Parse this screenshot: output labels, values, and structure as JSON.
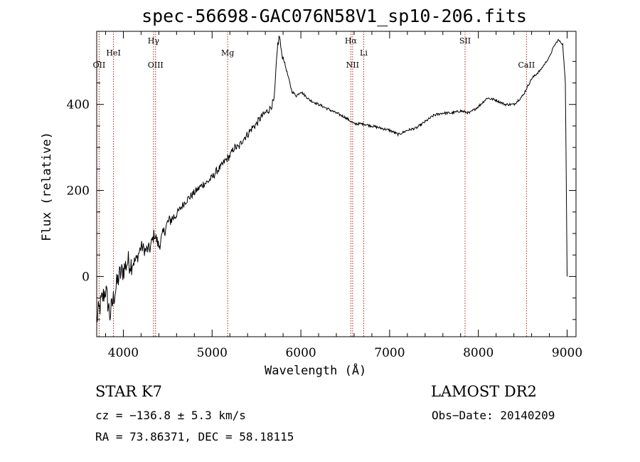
{
  "chart_data": {
    "type": "line",
    "title": "spec-56698-GAC076N58V1_sp10-206.fits",
    "xlabel": "Wavelength (Å)",
    "ylabel": "Flux (relative)",
    "xlim": [
      3700,
      9100
    ],
    "ylim": [
      -140,
      570
    ],
    "x_ticks": [
      4000,
      5000,
      6000,
      7000,
      8000,
      9000
    ],
    "y_ticks": [
      0,
      200,
      400
    ],
    "grid": false,
    "series": [
      {
        "x": [
          3700,
          3750,
          3800,
          3850,
          3900,
          3950,
          4000,
          4050,
          4100,
          4150,
          4200,
          4250,
          4300,
          4350,
          4400,
          4450,
          4500,
          4550,
          4600,
          4650,
          4700,
          4750,
          4800,
          4850,
          4900,
          4950,
          5000,
          5050,
          5100,
          5150,
          5200,
          5250,
          5300,
          5350,
          5400,
          5450,
          5500,
          5550,
          5600,
          5650,
          5700,
          5720,
          5740,
          5760,
          5780,
          5800,
          5850,
          5900,
          5950,
          6000,
          6100,
          6200,
          6300,
          6400,
          6500,
          6600,
          6700,
          6800,
          6900,
          7000,
          7100,
          7150,
          7200,
          7300,
          7400,
          7500,
          7600,
          7700,
          7800,
          7900,
          8000,
          8100,
          8200,
          8300,
          8400,
          8500,
          8550,
          8600,
          8700,
          8800,
          8850,
          8900,
          8950,
          8980,
          9000
        ],
        "y": [
          -100,
          -60,
          -30,
          -90,
          -40,
          0,
          15,
          35,
          30,
          40,
          70,
          60,
          65,
          100,
          70,
          100,
          125,
          135,
          145,
          160,
          175,
          185,
          195,
          205,
          215,
          220,
          230,
          245,
          255,
          270,
          280,
          300,
          300,
          320,
          330,
          345,
          355,
          370,
          380,
          390,
          410,
          480,
          540,
          560,
          520,
          510,
          470,
          430,
          420,
          430,
          410,
          400,
          390,
          380,
          370,
          355,
          355,
          350,
          345,
          340,
          330,
          335,
          340,
          345,
          360,
          375,
          380,
          380,
          385,
          380,
          395,
          415,
          410,
          400,
          400,
          420,
          440,
          460,
          480,
          510,
          535,
          550,
          540,
          450,
          0
        ]
      }
    ],
    "line_markers": [
      {
        "label": "OII",
        "x": 3727,
        "row": "low"
      },
      {
        "label": "HeI",
        "x": 3889,
        "row": "mid"
      },
      {
        "label": "Hγ",
        "x": 4340,
        "row": "high"
      },
      {
        "label": "OIII",
        "x": 4363,
        "row": "low"
      },
      {
        "label": "Mg",
        "x": 5175,
        "row": "mid"
      },
      {
        "label": "Hα",
        "x": 6563,
        "row": "high"
      },
      {
        "label": "NII",
        "x": 6583,
        "row": "low"
      },
      {
        "label": "Li",
        "x": 6708,
        "row": "mid"
      },
      {
        "label": "SII",
        "x": 7850,
        "row": "high"
      },
      {
        "label": "CaII",
        "x": 8542,
        "row": "low"
      }
    ]
  },
  "info": {
    "class_line": "STAR    K7",
    "survey": "LAMOST DR2",
    "cz": "cz = −136.8 ± 5.3 km/s",
    "obs_date": "Obs−Date: 20140209",
    "radec": "RA =  73.86371, DEC =  58.18115"
  },
  "colors": {
    "spectrum": "#000000",
    "marker_line": "#b22222",
    "axes": "#000000"
  }
}
